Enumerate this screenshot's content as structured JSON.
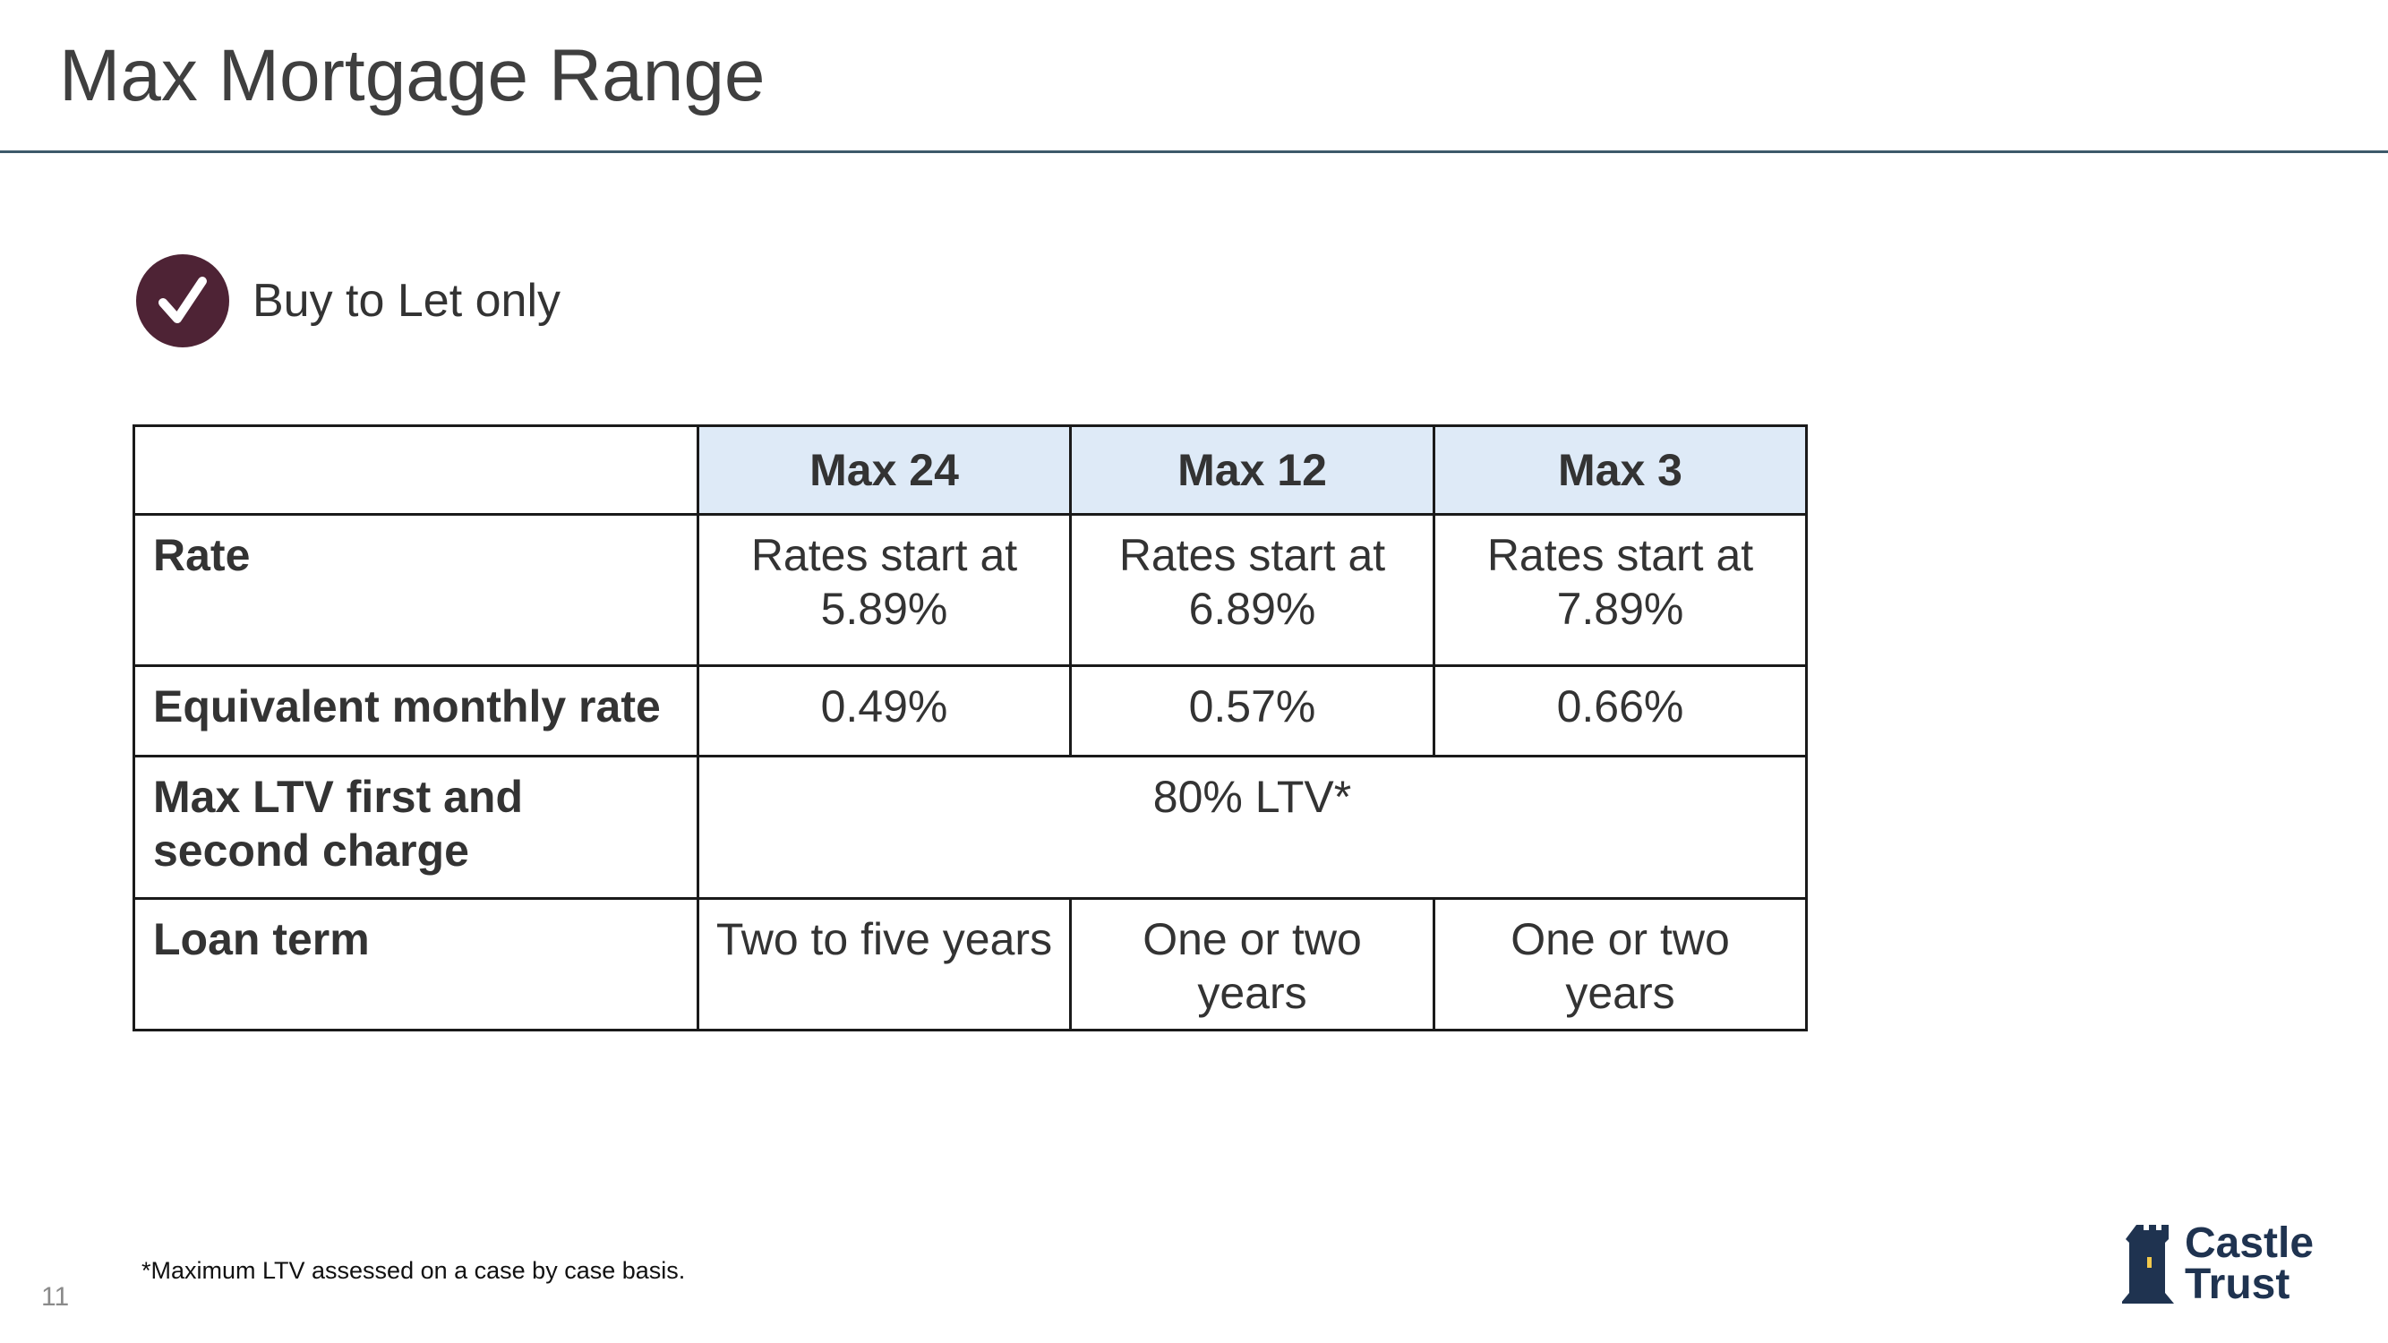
{
  "slide": {
    "title": "Max Mortgage Range",
    "page_number": "11"
  },
  "badge": {
    "icon": "checkmark-icon",
    "label": "Buy to Let only",
    "color": "#4e2335"
  },
  "table": {
    "headers": [
      "",
      "Max 24",
      "Max 12",
      "Max 3"
    ],
    "header_bg": "#deeaf7",
    "rows": {
      "rate": {
        "label": "Rate",
        "values": [
          [
            "Rates start at",
            "5.89%"
          ],
          [
            "Rates start at",
            "6.89%"
          ],
          [
            "Rates start at",
            "7.89%"
          ]
        ]
      },
      "monthly": {
        "label": "Equivalent monthly rate",
        "values": [
          "0.49%",
          "0.57%",
          "0.66%"
        ]
      },
      "ltv": {
        "label_lines": [
          "Max LTV first and",
          "second charge"
        ],
        "value": "80% LTV*"
      },
      "term": {
        "label": "Loan term",
        "values": [
          [
            "Two to five years"
          ],
          [
            "One or two",
            "years"
          ],
          [
            "One or two",
            "years"
          ]
        ]
      }
    }
  },
  "footnote": "*Maximum LTV assessed on a case by case basis.",
  "logo": {
    "line1": "Castle",
    "line2": "Trust",
    "icon": "castle-tower-icon",
    "color": "#1f3350"
  }
}
